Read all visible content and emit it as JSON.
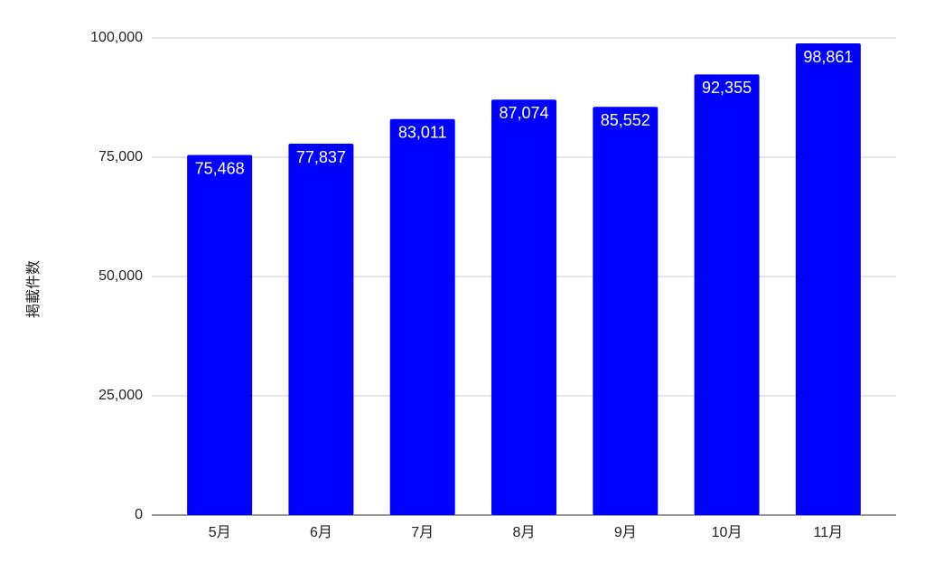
{
  "chart_data": {
    "type": "bar",
    "y_label": "掲載件数",
    "categories": [
      "5月",
      "6月",
      "7月",
      "8月",
      "9月",
      "10月",
      "11月"
    ],
    "values": [
      75468,
      77837,
      83011,
      87074,
      85552,
      92355,
      98861
    ],
    "value_labels": [
      "75,468",
      "77,837",
      "83,011",
      "87,074",
      "85,552",
      "92,355",
      "98,861"
    ],
    "color": "#0000ff",
    "ylim": [
      0,
      100000
    ],
    "yticks": [
      0,
      {
        "value": 25000,
        "label": "25,000"
      },
      {
        "value": 50000,
        "label": "50,000"
      },
      {
        "value": 75000,
        "label": "75,000"
      },
      {
        "value": 100000,
        "label": "100,000"
      }
    ],
    "grid": true
  }
}
